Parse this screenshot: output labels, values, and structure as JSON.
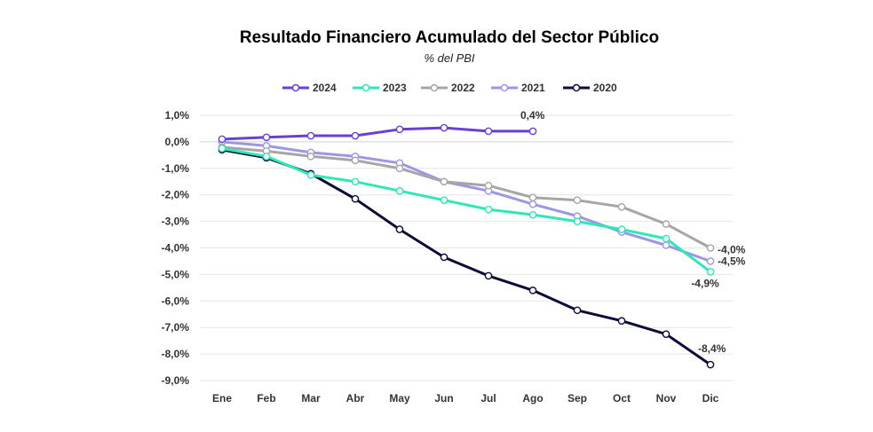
{
  "chart_data": {
    "type": "line",
    "title": "Resultado Financiero Acumulado del Sector Público",
    "subtitle": "% del PBI",
    "categories": [
      "Ene",
      "Feb",
      "Mar",
      "Abr",
      "May",
      "Jun",
      "Jul",
      "Ago",
      "Sep",
      "Oct",
      "Nov",
      "Dic"
    ],
    "ylim": [
      -9,
      1
    ],
    "yticks": [
      1,
      0,
      -1,
      -2,
      -3,
      -4,
      -5,
      -6,
      -7,
      -8,
      -9
    ],
    "ytick_labels": [
      "1,0%",
      "0,0%",
      "-1,0%",
      "-2,0%",
      "-3,0%",
      "-4,0%",
      "-5,0%",
      "-6,0%",
      "-7,0%",
      "-8,0%",
      "-9,0%"
    ],
    "grid": true,
    "legend_position": "top",
    "series": [
      {
        "name": "2024",
        "color": "#6a3fd4",
        "values": [
          0.1,
          0.17,
          0.23,
          0.23,
          0.47,
          0.53,
          0.4,
          0.4,
          null,
          null,
          null,
          null
        ],
        "end_label": "0,4%"
      },
      {
        "name": "2023",
        "color": "#2ee8b6",
        "values": [
          -0.25,
          -0.55,
          -1.25,
          -1.5,
          -1.85,
          -2.2,
          -2.55,
          -2.75,
          -3.0,
          -3.3,
          -3.65,
          -4.9
        ],
        "end_label": "-4,9%"
      },
      {
        "name": "2022",
        "color": "#a6a6a6",
        "values": [
          -0.2,
          -0.35,
          -0.55,
          -0.7,
          -1.0,
          -1.5,
          -1.65,
          -2.1,
          -2.2,
          -2.45,
          -3.1,
          -4.0
        ],
        "end_label": "-4,0%"
      },
      {
        "name": "2021",
        "color": "#9b97e6",
        "values": [
          0.0,
          -0.15,
          -0.4,
          -0.55,
          -0.8,
          -1.5,
          -1.85,
          -2.35,
          -2.8,
          -3.4,
          -3.9,
          -4.5
        ],
        "end_label": "-4,5%"
      },
      {
        "name": "2020",
        "color": "#0b0d38",
        "values": [
          -0.3,
          -0.6,
          -1.2,
          -2.15,
          -3.3,
          -4.35,
          -5.05,
          -5.6,
          -6.35,
          -6.75,
          -7.25,
          -8.4
        ],
        "end_label": "-8,4%"
      }
    ]
  }
}
